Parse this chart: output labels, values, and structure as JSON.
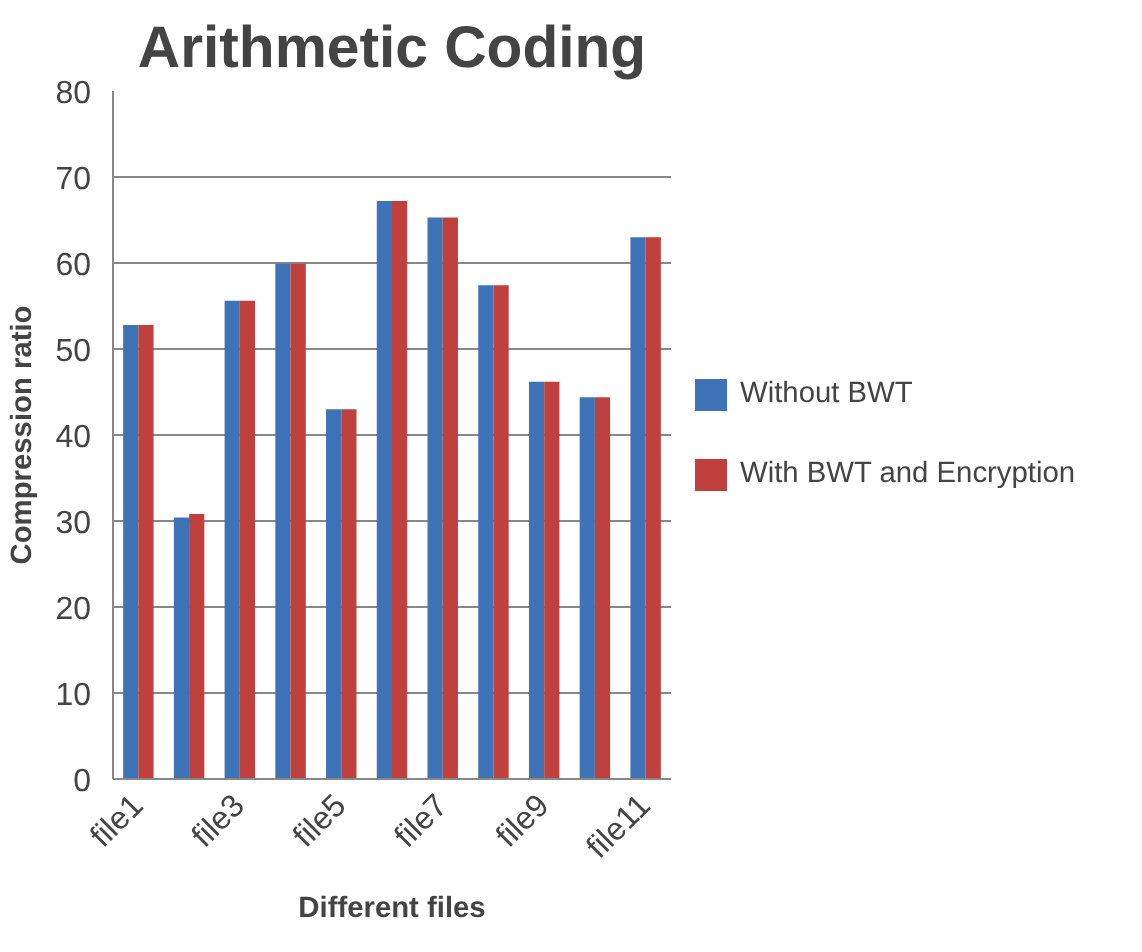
{
  "chart_data": {
    "type": "bar",
    "title": "Arithmetic Coding",
    "xlabel": "Different files",
    "ylabel": "Compression ratio",
    "categories": [
      "file1",
      null,
      "file3",
      null,
      "file5",
      null,
      "file7",
      null,
      "file9",
      null,
      "file11"
    ],
    "series": [
      {
        "name": "Without BWT",
        "color": "#3f73b8",
        "values": [
          52.8,
          30.4,
          55.6,
          59.9,
          43.0,
          67.2,
          65.3,
          57.4,
          46.2,
          44.4,
          63.0
        ]
      },
      {
        "name": "With BWT and Encryption",
        "color": "#c0403d",
        "values": [
          52.8,
          30.8,
          55.6,
          59.9,
          43.0,
          67.2,
          65.3,
          57.4,
          46.2,
          44.4,
          63.0
        ]
      }
    ],
    "ylim": [
      0,
      80
    ],
    "yticks": [
      0,
      10,
      20,
      30,
      40,
      50,
      60,
      70,
      80
    ],
    "grid": "y",
    "legend": "right"
  }
}
